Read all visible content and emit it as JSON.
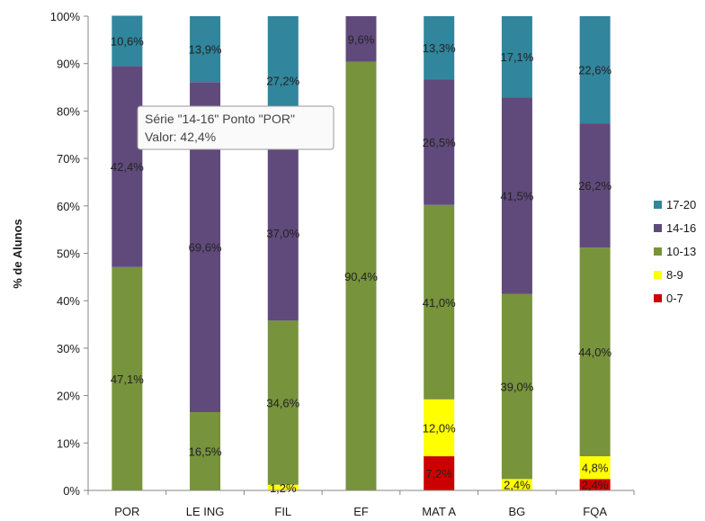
{
  "chart_data": {
    "type": "bar",
    "stacked": true,
    "percent_stacked": true,
    "title": "",
    "xlabel": "",
    "ylabel": "% de Alunos",
    "ylim": [
      0,
      100
    ],
    "ytick_labels": [
      "0%",
      "10%",
      "20%",
      "30%",
      "40%",
      "50%",
      "60%",
      "70%",
      "80%",
      "90%",
      "100%"
    ],
    "grid": false,
    "legend_position": "right",
    "categories": [
      "POR",
      "LE ING",
      "FIL",
      "EF",
      "MAT A",
      "BG",
      "FQA"
    ],
    "series": [
      {
        "name": "0-7",
        "color": "#cc0000",
        "values": [
          0,
          0,
          0,
          0,
          7.2,
          0,
          2.4
        ],
        "labels": [
          "",
          "",
          "",
          "",
          "7,2%",
          "",
          "2,4%"
        ]
      },
      {
        "name": "8-9",
        "color": "#ffff00",
        "values": [
          0,
          0,
          1.2,
          0,
          12.0,
          2.4,
          4.8
        ],
        "labels": [
          "",
          "",
          "1,2%",
          "",
          "12,0%",
          "2,4%",
          "4,8%"
        ]
      },
      {
        "name": "10-13",
        "color": "#77933c",
        "values": [
          47.1,
          16.5,
          34.6,
          90.4,
          41.0,
          39.0,
          44.0
        ],
        "labels": [
          "47,1%",
          "16,5%",
          "34,6%",
          "90,4%",
          "41,0%",
          "39,0%",
          "44,0%"
        ]
      },
      {
        "name": "14-16",
        "color": "#604a7b",
        "values": [
          42.4,
          69.6,
          37.0,
          9.6,
          26.5,
          41.5,
          26.2
        ],
        "labels": [
          "42,4%",
          "69,6%",
          "37,0%",
          "9,6%",
          "26,5%",
          "41,5%",
          "26,2%"
        ]
      },
      {
        "name": "17-20",
        "color": "#31859c",
        "values": [
          10.6,
          13.9,
          27.2,
          0,
          13.3,
          17.1,
          22.6
        ],
        "labels": [
          "10,6%",
          "13,9%",
          "27,2%",
          "",
          "13,3%",
          "17,1%",
          "22,6%"
        ]
      }
    ],
    "legend_order": [
      "17-20",
      "14-16",
      "10-13",
      "8-9",
      "0-7"
    ],
    "legend_display": [
      "17-20",
      "14-16",
      "10-13",
      "8-9",
      "0-7"
    ],
    "tooltip": {
      "line1": "Série \"14-16\" Ponto \"POR\"",
      "line2": "Valor: 42,4%"
    }
  }
}
